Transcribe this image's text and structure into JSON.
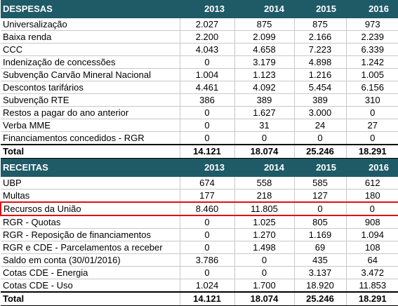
{
  "sections": [
    {
      "title": "DESPESAS",
      "years": [
        "2013",
        "2014",
        "2015",
        "2016"
      ],
      "rows": [
        [
          "Universalização",
          "2.027",
          "875",
          "875",
          "973"
        ],
        [
          "Baixa renda",
          "2.200",
          "2.099",
          "2.166",
          "2.239"
        ],
        [
          "CCC",
          "4.043",
          "4.658",
          "7.223",
          "6.339"
        ],
        [
          "Indenização de concessões",
          "0",
          "3.179",
          "4.898",
          "1.242"
        ],
        [
          "Subvenção Carvão Mineral Nacional",
          "1.004",
          "1.123",
          "1.216",
          "1.005"
        ],
        [
          "Descontos tarifários",
          "4.461",
          "4.092",
          "5.454",
          "6.156"
        ],
        [
          "Subvenção RTE",
          "386",
          "389",
          "389",
          "310"
        ],
        [
          "Restos a pagar do ano anterior",
          "0",
          "1.627",
          "3.000",
          "0"
        ],
        [
          "Verba MME",
          "0",
          "31",
          "24",
          "27"
        ],
        [
          "Financiamentos concedidos - RGR",
          "0",
          "0",
          "0",
          "0"
        ]
      ],
      "total": [
        "Total",
        "14.121",
        "18.074",
        "25.246",
        "18.291"
      ]
    },
    {
      "title": "RECEITAS",
      "years": [
        "2013",
        "2014",
        "2015",
        "2016"
      ],
      "rows": [
        [
          "UBP",
          "674",
          "558",
          "585",
          "612"
        ],
        [
          "Multas",
          "177",
          "218",
          "127",
          "180"
        ],
        [
          "Recursos da União",
          "8.460",
          "11.805",
          "0",
          "0"
        ],
        [
          "RGR - Quotas",
          "0",
          "1.025",
          "805",
          "908"
        ],
        [
          "RGR - Reposição de financiamentos",
          "0",
          "1.270",
          "1.169",
          "1.094"
        ],
        [
          "RGR e CDE - Parcelamentos a receber",
          "0",
          "1.498",
          "69",
          "108"
        ],
        [
          "Saldo em conta (30/01/2016)",
          "3.786",
          "0",
          "435",
          "64"
        ],
        [
          "Cotas CDE - Energia",
          "0",
          "0",
          "3.137",
          "3.472"
        ],
        [
          "Cotas CDE - Uso",
          "1.024",
          "1.700",
          "18.920",
          "11.853"
        ]
      ],
      "total": [
        "Total",
        "14.121",
        "18.074",
        "25.246",
        "18.291"
      ]
    }
  ]
}
